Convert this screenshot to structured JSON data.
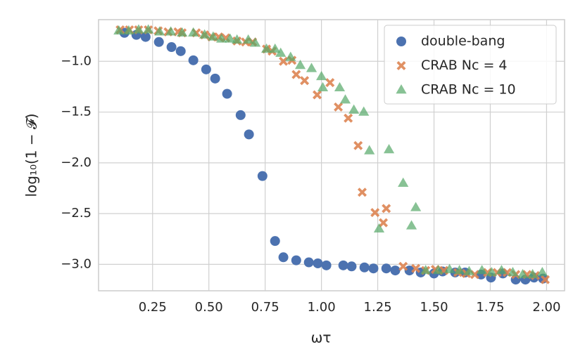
{
  "chart_data": {
    "type": "scatter",
    "xlabel": "ωτ",
    "ylabel": "log₁₀(1 − 𝓕)",
    "xlim": [
      0.01,
      2.08
    ],
    "ylim": [
      -3.26,
      -0.59
    ],
    "xticks": [
      0.25,
      {
        "value": 0.5,
        "label": "0.50"
      },
      0.75,
      {
        "value": 1,
        "label": "1.00"
      },
      1.25,
      {
        "value": 1.5,
        "label": "1.50"
      },
      1.75,
      {
        "value": 2,
        "label": "2.00"
      }
    ],
    "yticks": [
      {
        "value": -1,
        "label": "−1.0"
      },
      {
        "value": -1.5,
        "label": "−1.5"
      },
      {
        "value": -2,
        "label": "−2.0"
      },
      {
        "value": -2.5,
        "label": "−2.5"
      },
      {
        "value": -3,
        "label": "−3.0"
      }
    ],
    "grid": true,
    "legend": "upper right",
    "series": [
      {
        "name": "double-bang",
        "color": "#4c72b0",
        "marker": "circle",
        "x": [
          0.125,
          0.178,
          0.219,
          0.278,
          0.334,
          0.375,
          0.431,
          0.488,
          0.528,
          0.581,
          0.641,
          0.678,
          0.738,
          0.794,
          0.831,
          0.888,
          0.944,
          0.984,
          1.022,
          1.097,
          1.134,
          1.191,
          1.231,
          1.288,
          1.328,
          1.391,
          1.441,
          1.5,
          1.538,
          1.594,
          1.638,
          1.709,
          1.753,
          1.806,
          1.863,
          1.906,
          1.944,
          1.984
        ],
        "values": [
          -0.72,
          -0.74,
          -0.76,
          -0.81,
          -0.86,
          -0.9,
          -0.99,
          -1.08,
          -1.17,
          -1.32,
          -1.53,
          -1.72,
          -2.13,
          -2.77,
          -2.93,
          -2.96,
          -2.98,
          -2.99,
          -3.01,
          -3.01,
          -3.02,
          -3.03,
          -3.04,
          -3.04,
          -3.06,
          -3.06,
          -3.08,
          -3.09,
          -3.07,
          -3.08,
          -3.08,
          -3.1,
          -3.13,
          -3.09,
          -3.15,
          -3.15,
          -3.13,
          -3.14
        ]
      },
      {
        "name": "CRAB Nc = 4",
        "color": "#dd8452",
        "marker": "x",
        "x": [
          0.106,
          0.147,
          0.188,
          0.231,
          0.275,
          0.319,
          0.363,
          0.381,
          0.444,
          0.481,
          0.513,
          0.544,
          0.575,
          0.625,
          0.663,
          0.694,
          0.756,
          0.781,
          0.831,
          0.869,
          0.888,
          0.925,
          0.981,
          1.038,
          1.075,
          1.119,
          1.163,
          1.181,
          1.238,
          1.275,
          1.288,
          1.363,
          1.419,
          1.463,
          1.506,
          1.544,
          1.606,
          1.644,
          1.681,
          1.738,
          1.781,
          1.825,
          1.863,
          1.913,
          1.95,
          1.994
        ],
        "values": [
          -0.69,
          -0.69,
          -0.69,
          -0.69,
          -0.7,
          -0.71,
          -0.71,
          -0.72,
          -0.72,
          -0.74,
          -0.76,
          -0.76,
          -0.77,
          -0.8,
          -0.81,
          -0.81,
          -0.88,
          -0.9,
          -1.0,
          -0.99,
          -1.13,
          -1.19,
          -1.33,
          -1.21,
          -1.45,
          -1.56,
          -1.83,
          -2.29,
          -2.49,
          -2.59,
          -2.45,
          -3.02,
          -3.04,
          -3.06,
          -3.05,
          -3.06,
          -3.08,
          -3.09,
          -3.1,
          -3.08,
          -3.08,
          -3.08,
          -3.1,
          -3.1,
          -3.11,
          -3.15
        ]
      },
      {
        "name": "CRAB Nc = 10",
        "color": "#55a868",
        "marker": "triangle",
        "x": [
          0.1,
          0.144,
          0.188,
          0.231,
          0.281,
          0.331,
          0.381,
          0.431,
          0.481,
          0.519,
          0.556,
          0.594,
          0.625,
          0.675,
          0.706,
          0.756,
          0.794,
          0.819,
          0.863,
          0.906,
          0.956,
          1.0,
          1.006,
          1.081,
          1.106,
          1.144,
          1.188,
          1.213,
          1.256,
          1.3,
          1.363,
          1.4,
          1.419,
          1.463,
          1.519,
          1.569,
          1.613,
          1.656,
          1.713,
          1.756,
          1.8,
          1.85,
          1.894,
          1.938,
          1.981
        ],
        "values": [
          -0.7,
          -0.7,
          -0.69,
          -0.69,
          -0.71,
          -0.71,
          -0.72,
          -0.72,
          -0.74,
          -0.76,
          -0.78,
          -0.78,
          -0.79,
          -0.79,
          -0.82,
          -0.88,
          -0.88,
          -0.92,
          -0.96,
          -1.04,
          -1.07,
          -1.15,
          -1.26,
          -1.26,
          -1.38,
          -1.48,
          -1.5,
          -1.88,
          -2.65,
          -1.87,
          -2.2,
          -2.62,
          -2.44,
          -3.06,
          -3.06,
          -3.05,
          -3.06,
          -3.07,
          -3.06,
          -3.08,
          -3.06,
          -3.08,
          -3.1,
          -3.1,
          -3.08
        ]
      }
    ]
  }
}
